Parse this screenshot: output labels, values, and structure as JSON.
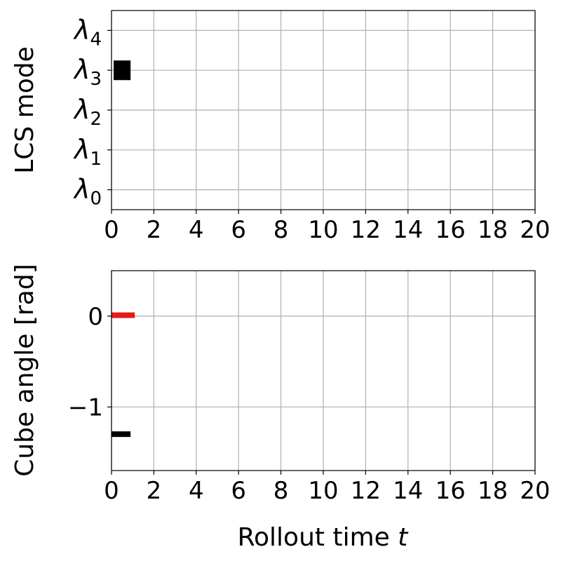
{
  "chart_data": [
    {
      "type": "line",
      "ylabel": "LCS mode",
      "xlim": [
        0,
        20
      ],
      "xticks": [
        "0",
        "2",
        "4",
        "6",
        "8",
        "10",
        "12",
        "14",
        "16",
        "18",
        "20"
      ],
      "ylim": [
        -0.5,
        4.5
      ],
      "ytick_base": "λ",
      "ytick_subs": [
        "0",
        "1",
        "2",
        "3",
        "4"
      ],
      "grid": true,
      "series": [
        {
          "color": "#000000",
          "x": [
            0.1,
            0.9
          ],
          "y": [
            3,
            3
          ]
        }
      ]
    },
    {
      "type": "line",
      "ylabel": "Cube angle [rad]",
      "xlabel_text": "Rollout time ",
      "xlabel_var": "t",
      "xlim": [
        0,
        20
      ],
      "xticks": [
        "0",
        "2",
        "4",
        "6",
        "8",
        "10",
        "12",
        "14",
        "16",
        "18",
        "20"
      ],
      "ylim": [
        -1.7,
        0.5
      ],
      "yticks": [
        {
          "value": 0,
          "label": "0"
        },
        {
          "value": -1,
          "label": "−1"
        }
      ],
      "grid": true,
      "series": [
        {
          "color": "#e41a1c",
          "x": [
            0,
            1.1
          ],
          "y": [
            0.01,
            0.01
          ]
        },
        {
          "color": "#000000",
          "x": [
            0,
            0.9
          ],
          "y": [
            -1.3,
            -1.3
          ]
        }
      ]
    }
  ]
}
